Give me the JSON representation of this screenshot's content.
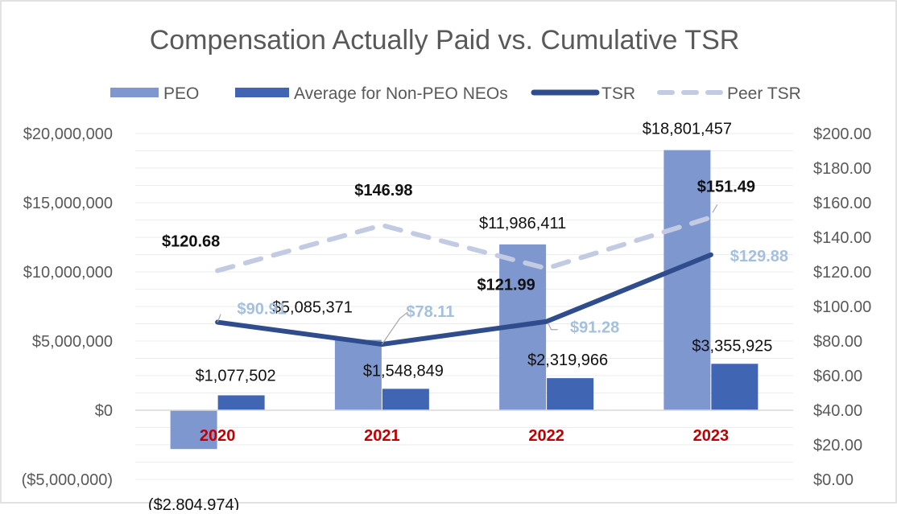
{
  "chart_data": {
    "type": "bar",
    "title": "Compensation Actually Paid vs. Cumulative TSR",
    "categories": [
      "2020",
      "2021",
      "2022",
      "2023"
    ],
    "legend": [
      {
        "key": "peo",
        "label": "PEO"
      },
      {
        "key": "nonpeo",
        "label": "Average for Non-PEO NEOs"
      },
      {
        "key": "tsr",
        "label": "TSR"
      },
      {
        "key": "peer",
        "label": "Peer TSR"
      }
    ],
    "legend_position": "top",
    "ylim": [
      -5000000,
      20000000
    ],
    "y_ticks": [
      {
        "value": 20000000,
        "label": "$20,000,000"
      },
      {
        "value": 15000000,
        "label": "$15,000,000"
      },
      {
        "value": 10000000,
        "label": "$10,000,000"
      },
      {
        "value": 5000000,
        "label": "$5,000,000"
      },
      {
        "value": 0,
        "label": "$0"
      },
      {
        "value": -5000000,
        "label": "($5,000,000)"
      }
    ],
    "y2lim": [
      0,
      200
    ],
    "y2_ticks": [
      {
        "value": 200,
        "label": "$200.00"
      },
      {
        "value": 180,
        "label": "$180.00"
      },
      {
        "value": 160,
        "label": "$160.00"
      },
      {
        "value": 140,
        "label": "$140.00"
      },
      {
        "value": 120,
        "label": "$120.00"
      },
      {
        "value": 100,
        "label": "$100.00"
      },
      {
        "value": 80,
        "label": "$80.00"
      },
      {
        "value": 60,
        "label": "$60.00"
      },
      {
        "value": 40,
        "label": "$40.00"
      },
      {
        "value": 20,
        "label": "$20.00"
      },
      {
        "value": 0,
        "label": "$0.00"
      }
    ],
    "series": [
      {
        "key": "peo",
        "name": "PEO",
        "kind": "bar",
        "axis": "left",
        "color": "#7f97cf",
        "values": [
          -2804974,
          5085371,
          11986411,
          18801457
        ],
        "labels": [
          "($2,804,974)",
          "$5,085,371",
          "$11,986,411",
          "$18,801,457"
        ]
      },
      {
        "key": "nonpeo",
        "name": "Average for Non-PEO NEOs",
        "kind": "bar",
        "axis": "left",
        "color": "#4065b2",
        "values": [
          1077502,
          1548849,
          2319966,
          3355925
        ],
        "labels": [
          "$1,077,502",
          "$1,548,849",
          "$2,319,966",
          "$3,355,925"
        ]
      },
      {
        "key": "tsr",
        "name": "TSR",
        "kind": "line",
        "axis": "right",
        "color": "#2f4c8c",
        "values": [
          90.91,
          78.11,
          91.28,
          129.88
        ],
        "labels": [
          "$90.91",
          "$78.11",
          "$91.28",
          "$129.88"
        ],
        "label_color": "#a5c0dd"
      },
      {
        "key": "peer",
        "name": "Peer TSR",
        "kind": "line",
        "style": "dashed",
        "axis": "right",
        "color": "#c3cbe3",
        "values": [
          120.68,
          146.98,
          121.99,
          151.49
        ],
        "labels": [
          "$120.68",
          "$146.98",
          "$121.99",
          "$151.49"
        ],
        "label_color": "#111111"
      }
    ],
    "category_label_color": "#c00000",
    "grid": true
  }
}
